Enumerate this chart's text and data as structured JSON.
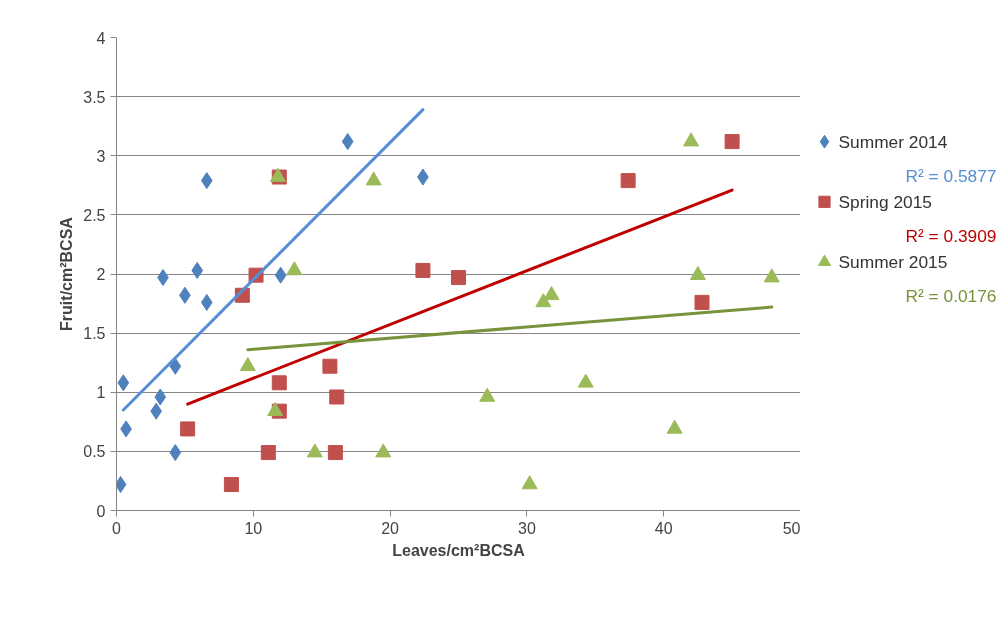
{
  "chart_data": {
    "type": "scatter",
    "xlabel": "Leaves/cm²BCSA",
    "ylabel": "Fruit/cm²BCSA",
    "xlim": [
      0,
      50
    ],
    "xticks": [
      0,
      10,
      20,
      30,
      40,
      50
    ],
    "ylim": [
      0,
      4
    ],
    "yticks": [
      0,
      0.5,
      1,
      1.5,
      2,
      2.5,
      3,
      3.5,
      4
    ],
    "grid": "y",
    "legend": "right",
    "series": [
      {
        "name": "Summer 2014",
        "color": "#4f81bd",
        "marker": "diamond",
        "x": [
          0.3,
          0.5,
          0.7,
          3.4,
          3.2,
          2.9,
          4.3,
          4.3,
          5.0,
          5.9,
          6.6,
          6.6,
          12.0,
          16.9,
          22.4
        ],
        "values": [
          0.22,
          1.08,
          0.69,
          1.97,
          0.96,
          0.84,
          0.49,
          1.22,
          1.82,
          2.03,
          1.76,
          2.79,
          1.99,
          3.12,
          2.82
        ]
      },
      {
        "name": "Spring 2015",
        "color": "#c0504d",
        "marker": "square",
        "x": [
          5.2,
          8.4,
          9.2,
          10.2,
          11.9,
          11.1,
          11.9,
          11.9,
          15.6,
          16.1,
          16.0,
          22.4,
          25.0,
          37.4,
          42.8,
          45.0
        ],
        "values": [
          0.69,
          0.22,
          1.82,
          1.99,
          2.82,
          0.49,
          1.08,
          0.84,
          1.22,
          0.96,
          0.49,
          2.03,
          1.97,
          2.79,
          1.76,
          3.12
        ]
      },
      {
        "name": "Summer 2015",
        "color": "#9bbb59",
        "marker": "triangle",
        "x": [
          11.8,
          18.8,
          13.0,
          9.6,
          11.6,
          14.5,
          19.5,
          27.1,
          30.2,
          31.2,
          31.8,
          34.3,
          40.8,
          42.0,
          42.5,
          47.9
        ],
        "values": [
          2.82,
          2.79,
          2.03,
          1.22,
          0.84,
          0.49,
          0.49,
          0.96,
          0.22,
          1.76,
          1.82,
          1.08,
          0.69,
          3.12,
          1.99,
          1.97
        ]
      },
      {
        "type": "line",
        "color": "#558ed5",
        "x": [
          0.5,
          22.4
        ],
        "values": [
          0.85,
          3.39
        ]
      },
      {
        "type": "line",
        "color": "#c00000",
        "x": [
          5.2,
          45.0
        ],
        "values": [
          0.9,
          2.71
        ]
      },
      {
        "type": "line",
        "color": "#77933c",
        "x": [
          9.6,
          47.9
        ],
        "values": [
          1.36,
          1.72
        ]
      }
    ],
    "annotations": [
      "R² = 0.5877",
      "R² = 0.3909",
      "R² = 0.0176"
    ]
  }
}
